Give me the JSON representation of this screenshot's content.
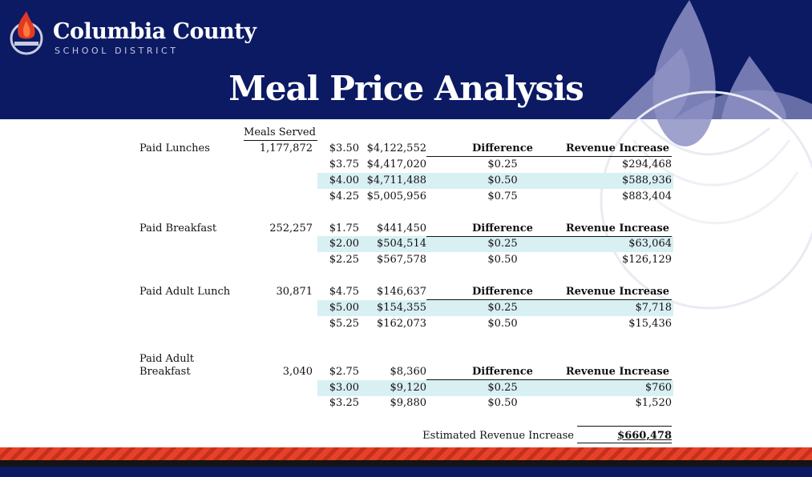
{
  "brand": {
    "name": "Columbia County",
    "subtitle": "SCHOOL DISTRICT"
  },
  "title": "Meal Price Analysis",
  "meals_served_header": "Meals Served",
  "difference_header": "Difference",
  "revenue_header": "Revenue Increase",
  "sections": [
    {
      "label": "Paid Lunches",
      "meals": "1,177,872",
      "rows": [
        {
          "price": "$3.50",
          "revenue": "$4,122,552",
          "difference": "",
          "increase": ""
        },
        {
          "price": "$3.75",
          "revenue": "$4,417,020",
          "difference": "$0.25",
          "increase": "$294,468"
        },
        {
          "price": "$4.00",
          "revenue": "$4,711,488",
          "difference": "$0.50",
          "increase": "$588,936"
        },
        {
          "price": "$4.25",
          "revenue": "$5,005,956",
          "difference": "$0.75",
          "increase": "$883,404"
        }
      ]
    },
    {
      "label": "Paid Breakfast",
      "meals": "252,257",
      "rows": [
        {
          "price": "$1.75",
          "revenue": "$441,450",
          "difference": "",
          "increase": ""
        },
        {
          "price": "$2.00",
          "revenue": "$504,514",
          "difference": "$0.25",
          "increase": "$63,064"
        },
        {
          "price": "$2.25",
          "revenue": "$567,578",
          "difference": "$0.50",
          "increase": "$126,129"
        }
      ]
    },
    {
      "label": "Paid Adult Lunch",
      "meals": "30,871",
      "rows": [
        {
          "price": "$4.75",
          "revenue": "$146,637",
          "difference": "",
          "increase": ""
        },
        {
          "price": "$5.00",
          "revenue": "$154,355",
          "difference": "$0.25",
          "increase": "$7,718"
        },
        {
          "price": "$5.25",
          "revenue": "$162,073",
          "difference": "$0.50",
          "increase": "$15,436"
        }
      ]
    },
    {
      "label_line1": "Paid Adult",
      "label_line2": "Breakfast",
      "meals": "3,040",
      "rows": [
        {
          "price": "$2.75",
          "revenue": "$8,360",
          "difference": "",
          "increase": ""
        },
        {
          "price": "$3.00",
          "revenue": "$9,120",
          "difference": "$0.25",
          "increase": "$760"
        },
        {
          "price": "$3.25",
          "revenue": "$9,880",
          "difference": "$0.50",
          "increase": "$1,520"
        }
      ]
    }
  ],
  "total": {
    "label": "Estimated Revenue Increase",
    "value": "$660,478"
  },
  "colors": {
    "navy": "#0b1a63",
    "highlight": "#d9f0f3",
    "flame_red": "#e8412a",
    "stripe_red": "#c5301d"
  },
  "icons": {
    "logo": "torch-flame-logo"
  }
}
